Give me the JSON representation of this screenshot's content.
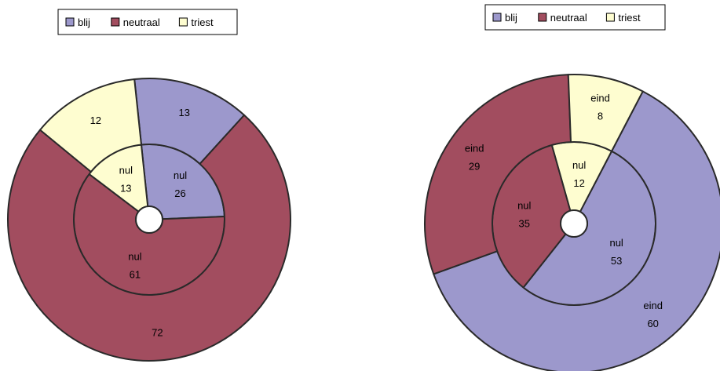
{
  "chart_data": [
    {
      "type": "donut",
      "categories": [
        "blij",
        "neutraal",
        "triest"
      ],
      "series": [
        {
          "name": "nul",
          "values": [
            26,
            61,
            13
          ]
        },
        {
          "name": "",
          "values": [
            13,
            72,
            12
          ]
        }
      ],
      "legend": {
        "placement": "top",
        "entries": [
          "blij",
          "neutraal",
          "triest"
        ]
      }
    },
    {
      "type": "donut",
      "categories": [
        "blij",
        "neutraal",
        "triest"
      ],
      "series": [
        {
          "name": "nul",
          "values": [
            53,
            35,
            12
          ]
        },
        {
          "name": "eind",
          "values": [
            60,
            29,
            8
          ]
        }
      ],
      "legend": {
        "placement": "top",
        "entries": [
          "blij",
          "neutraal",
          "triest"
        ]
      }
    }
  ],
  "colors": {
    "blij": "#9c98cc",
    "neutraal": "#a24d5f",
    "triest": "#fefdd0"
  }
}
